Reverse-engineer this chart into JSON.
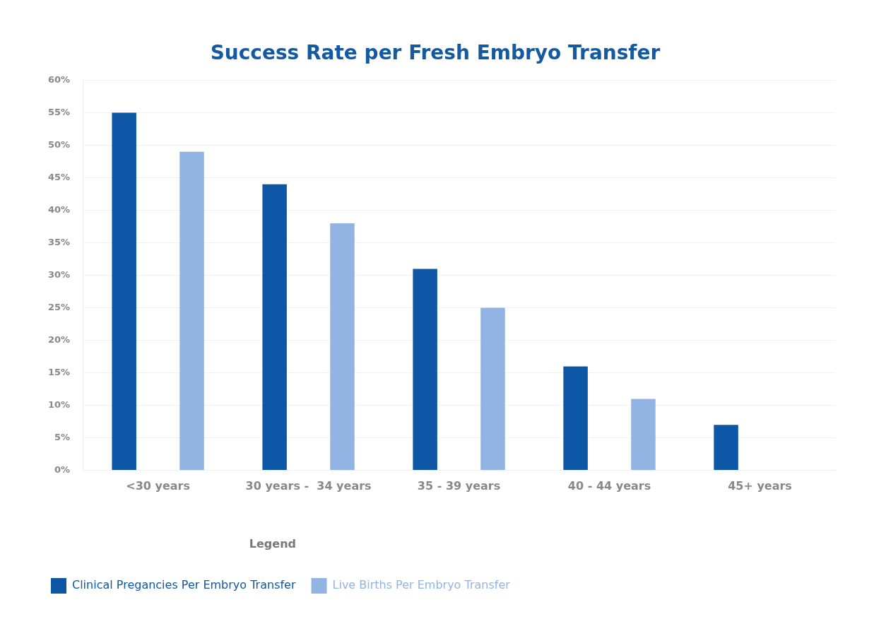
{
  "chart_data": {
    "type": "bar",
    "title": "Success Rate per Fresh Embryo Transfer",
    "categories": [
      "<30 years",
      "30 years -  34 years",
      "35 - 39 years",
      "40 - 44 years",
      "45+ years"
    ],
    "series": [
      {
        "name": "Clinical Pregancies Per Embryo Transfer",
        "color": "#0d57a6",
        "values": [
          55,
          44,
          31,
          16,
          7
        ]
      },
      {
        "name": "Live Births Per Embryo Transfer",
        "color": "#91b4e2",
        "values": [
          49,
          38,
          25,
          11,
          null
        ]
      }
    ],
    "ylim": [
      0,
      60
    ],
    "yticks": [
      {
        "value": 0,
        "label": "0%"
      },
      {
        "value": 5,
        "label": "5%"
      },
      {
        "value": 10,
        "label": "10%"
      },
      {
        "value": 15,
        "label": "15%"
      },
      {
        "value": 20,
        "label": "20%"
      },
      {
        "value": 25,
        "label": "25%"
      },
      {
        "value": 30,
        "label": "30%"
      },
      {
        "value": 35,
        "label": "35%"
      },
      {
        "value": 40,
        "label": "40%"
      },
      {
        "value": 45,
        "label": "45%"
      },
      {
        "value": 50,
        "label": "50%"
      },
      {
        "value": 55,
        "label": "55%"
      },
      {
        "value": 60,
        "label": "60%"
      }
    ],
    "grid": "y",
    "legend": "bottom left",
    "legend_title": "Legend"
  }
}
